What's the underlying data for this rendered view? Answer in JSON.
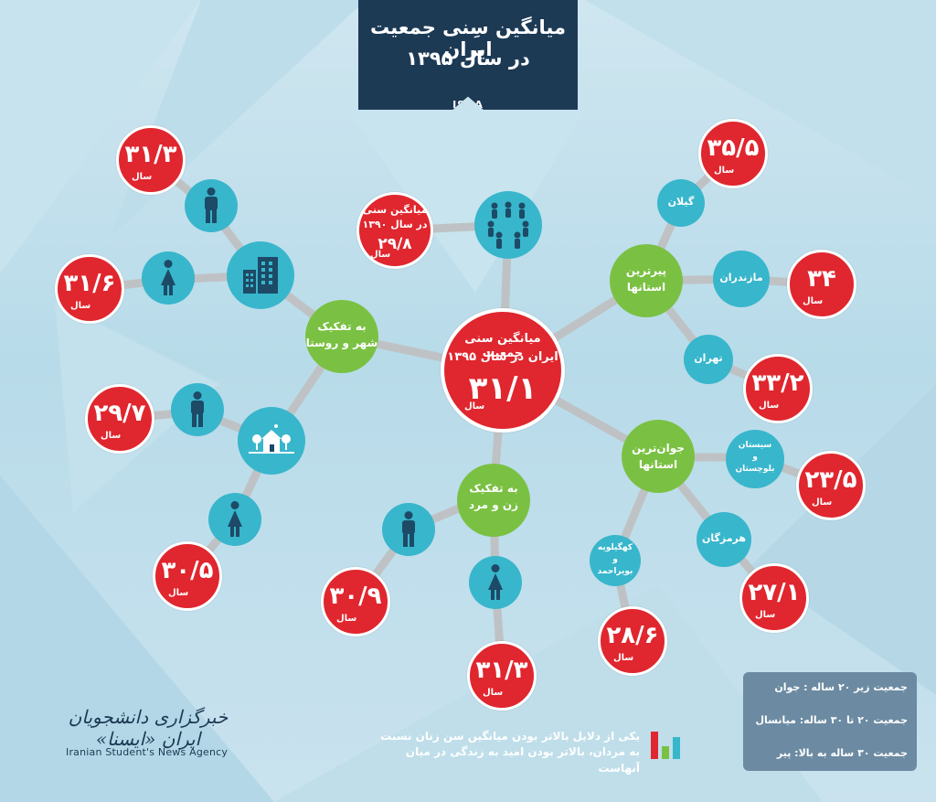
{
  "header": {
    "title_line1": "میانگین سِنی جمعیت ایران",
    "title_line2": "در سال ۱۳۹۵",
    "source": "ISNA"
  },
  "unit": "سال",
  "center": {
    "label_line1": "میانگین سنی جمعیت",
    "label_line2": "ایران در سال ۱۳۹۵",
    "value": "۳۱/۱"
  },
  "previous": {
    "label_line1": "میانگین سنی",
    "label_line2": "در سال ۱۳۹۰",
    "value": "۲۹/۸"
  },
  "hubs": {
    "urban_rural": {
      "line1": "به تفکیک",
      "line2": "شهر و روستا"
    },
    "gender": {
      "line1": "به تفکیک",
      "line2": "زن و مرد"
    },
    "oldest": {
      "line1": "پیرترین",
      "line2": "استانها"
    },
    "youngest": {
      "line1": "جوان‌ترین",
      "line2": "استانها"
    }
  },
  "urban": {
    "male": "۳۱/۳",
    "female": "۳۱/۶"
  },
  "rural": {
    "male": "۲۹/۷",
    "female": "۳۰/۵"
  },
  "gender": {
    "male": "۳۰/۹",
    "female": "۳۱/۳"
  },
  "oldest_provinces": [
    {
      "name": "گیلان",
      "value": "۳۵/۵"
    },
    {
      "name": "مازندران",
      "value": "۳۴"
    },
    {
      "name": "تهران",
      "value": "۳۳/۲"
    }
  ],
  "youngest_provinces": {
    "sistan": {
      "line1": "سیستان",
      "line2": "و",
      "line3": "بلوچستان",
      "value": "۲۳/۵"
    },
    "hormozgan": {
      "name": "هرمزگان",
      "value": "۲۷/۱"
    },
    "kohgiluyeh": {
      "line1": "کهگیلویه",
      "line2": "و",
      "line3": "بویراحمد",
      "value": "۲۸/۶"
    }
  },
  "legend": {
    "young": "جمعیت زیر ۲۰ ساله : جوان",
    "middle": "جمعیت ۲۰ تا ۳۰ ساله: میانسال",
    "old": "جمعیت ۳۰ ساله به بالا: پیر"
  },
  "note": {
    "line1": "یکی از دلایل بالاتر بودن میانگین سن زنان نسبت",
    "line2": "به مردان، بالاتر بودن امید به زندگی در میان آنهاست"
  },
  "logo": {
    "fa": "خبرگزاری دانشجویان ایران «ایسنا»",
    "en": "Iranian Student's News Agency"
  },
  "colors": {
    "red": "#e0262e",
    "teal": "#38b6cc",
    "green": "#7ac143",
    "navy": "#1d3a55",
    "line": "#bfc2c4"
  }
}
